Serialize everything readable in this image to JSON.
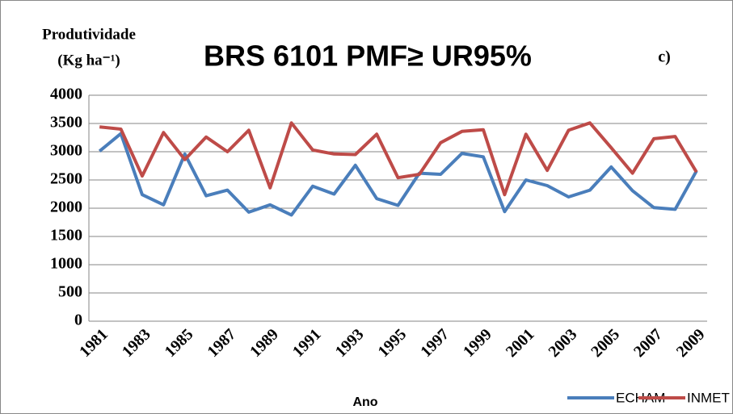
{
  "chart_data": {
    "type": "line",
    "title": "BRS 6101 PMF≥ UR95%",
    "y_label": [
      "Produtividade",
      "(Kg ha⁻¹)"
    ],
    "annotation": "c)",
    "x_label": "Ano",
    "categories": [
      "1981",
      null,
      "1983",
      null,
      "1985",
      null,
      "1987",
      null,
      "1989",
      null,
      "1991",
      null,
      "1993",
      null,
      "1995",
      null,
      "1997",
      null,
      "1999",
      null,
      "2001",
      null,
      "2003",
      null,
      "2005",
      null,
      "2007",
      null,
      "2009"
    ],
    "series": [
      {
        "name": "ECHAM",
        "color": "#4a7ebb",
        "values": [
          3010,
          3320,
          2240,
          2060,
          2960,
          2220,
          2320,
          1930,
          2060,
          1880,
          2390,
          2250,
          2760,
          2170,
          2050,
          2620,
          2600,
          2970,
          2910,
          1940,
          2500,
          2400,
          2200,
          2320,
          2730,
          2310,
          2010,
          1980,
          2660
        ]
      },
      {
        "name": "INMET",
        "color": "#be4b48",
        "values": [
          3440,
          3400,
          2570,
          3340,
          2860,
          3260,
          3000,
          3380,
          2360,
          3510,
          3030,
          2960,
          2950,
          3310,
          2540,
          2600,
          3160,
          3360,
          3390,
          2240,
          3310,
          2670,
          3380,
          3510,
          3070,
          2620,
          3230,
          3270,
          2640
        ]
      }
    ],
    "ylim": [
      0,
      4000
    ],
    "yticks": [
      0,
      500,
      1000,
      1500,
      2000,
      2500,
      3000,
      3500,
      4000
    ],
    "grid": true,
    "legend": "bottom-right"
  }
}
